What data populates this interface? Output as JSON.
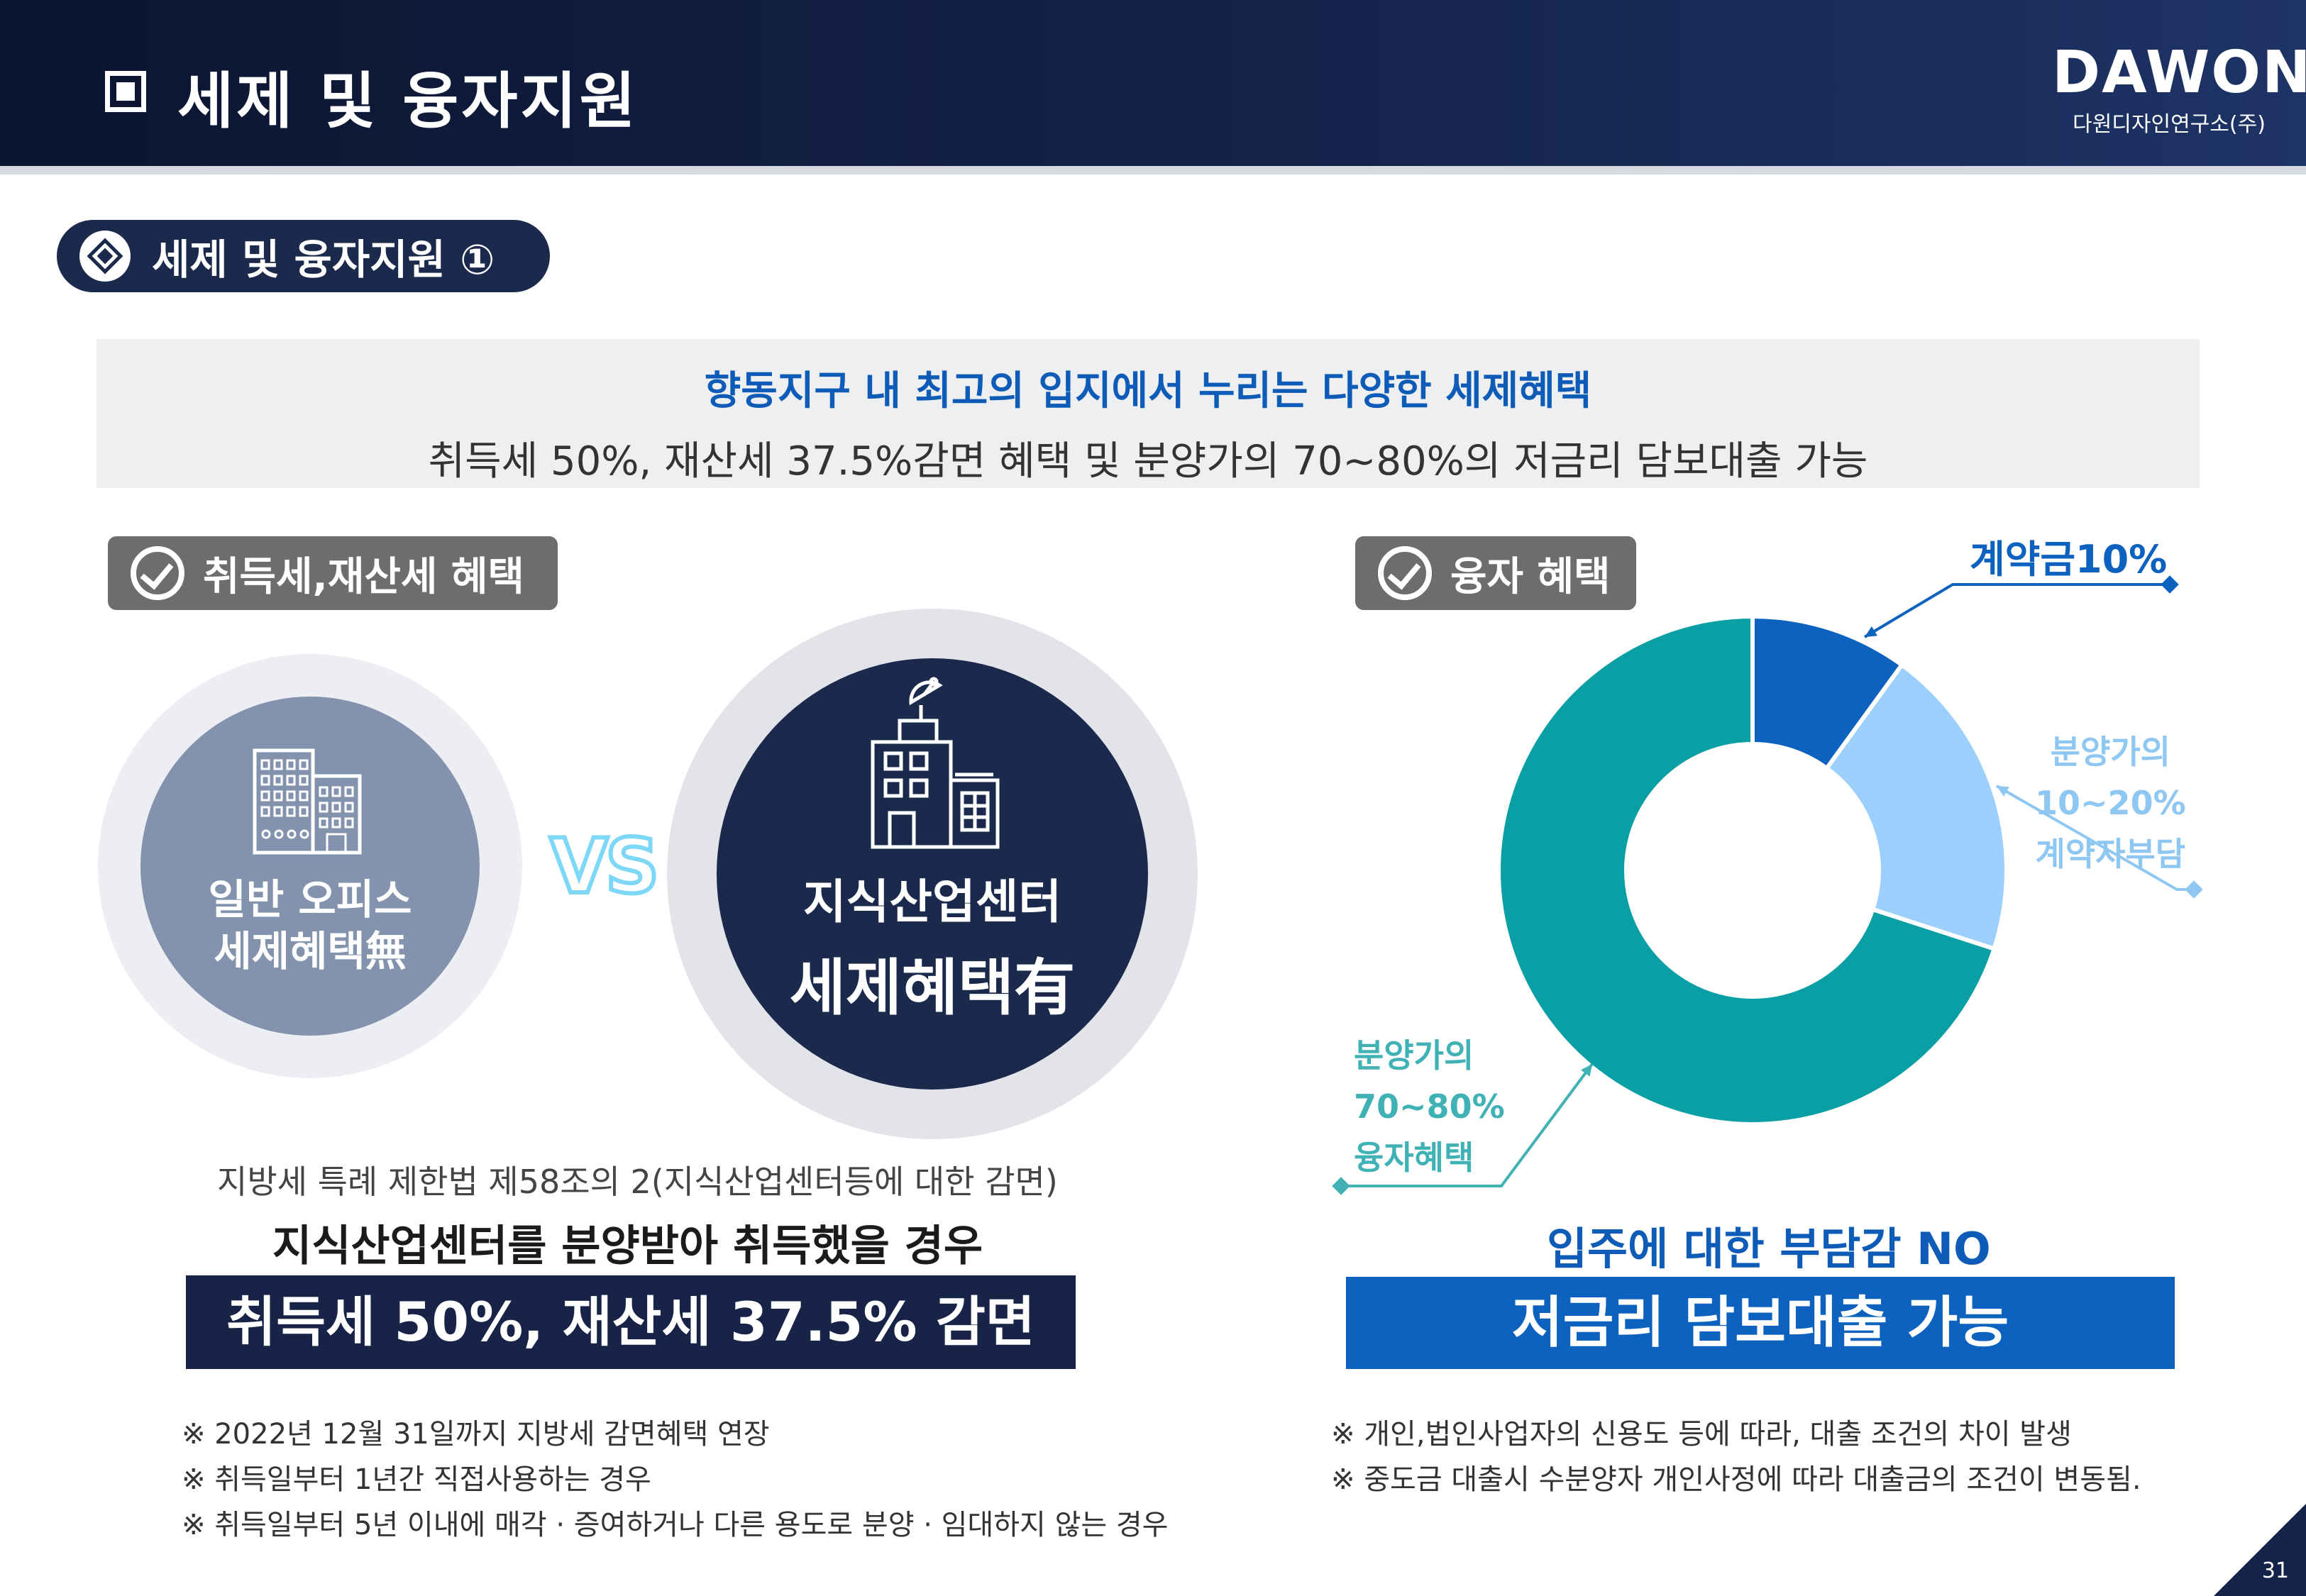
{
  "header": {
    "title": "세제 및 융자지원",
    "logo_main": "DAWON",
    "logo_sub": "다원디자인연구소(주)"
  },
  "section": {
    "label": "세제 및 융자지원 ①"
  },
  "banner": {
    "headline": "향동지구 내 최고의 입지에서 누리는 다양한 세제혜택",
    "subline": "취득세 50%, 재산세 37.5%감면 혜택 및 분양가의 70~80%의 저금리 담보대출 가능"
  },
  "left": {
    "tag": "취득세,재산세 혜택",
    "office_line1": "일반 오피스",
    "office_line2": "세제혜택無",
    "vs": "VS",
    "center_line1": "지식산업센터",
    "center_line2": "세제혜택有",
    "law": "지방세 특례 제한법 제58조의 2(지식산업센터등에 대한 감면)",
    "condition": "지식산업센터를 분양받아 취득했을 경우",
    "benefit": "취득세 50%, 재산세 37.5% 감면",
    "notes": [
      "※  2022년 12월 31일까지 지방세 감면혜택 연장",
      "※  취득일부터 1년간 직접사용하는 경우",
      "※  취득일부터 5년 이내에 매각 · 증여하거나 다른 용도로 분양 · 임대하지 않는 경우"
    ]
  },
  "right": {
    "tag": "융자 혜택",
    "no_burden": "입주에 대한 부담감 NO",
    "benefit": "저금리 담보대출 가능",
    "notes": [
      "※  개인,법인사업자의 신용도 등에 따라, 대출 조건의 차이 발생",
      "※  중도금 대출시 수분양자 개인사정에 따라 대출금의 조건이 변동됨."
    ]
  },
  "chart_data": {
    "type": "pie",
    "donut": true,
    "slices": [
      {
        "label": "계약금10%",
        "value": 10,
        "color": "#0d62c0"
      },
      {
        "label": "분양가의 10~20% 계약자부담",
        "value": 20,
        "color": "#9ccffb"
      },
      {
        "label": "분양가의 70~80% 융자혜택",
        "value": 70,
        "color": "#0a9fa5"
      }
    ],
    "label_lines": [
      {
        "key": "deposit",
        "lines": [
          "계약금10%"
        ],
        "color": "#0d62c0"
      },
      {
        "key": "buyer",
        "lines": [
          "분양가의",
          "10~20%",
          "계약자부담"
        ],
        "color": "#8ec7f2"
      },
      {
        "key": "loan",
        "lines": [
          "분양가의",
          "70~80%",
          "융자혜택"
        ],
        "color": "#40b2b5"
      }
    ]
  },
  "page_number": "31"
}
